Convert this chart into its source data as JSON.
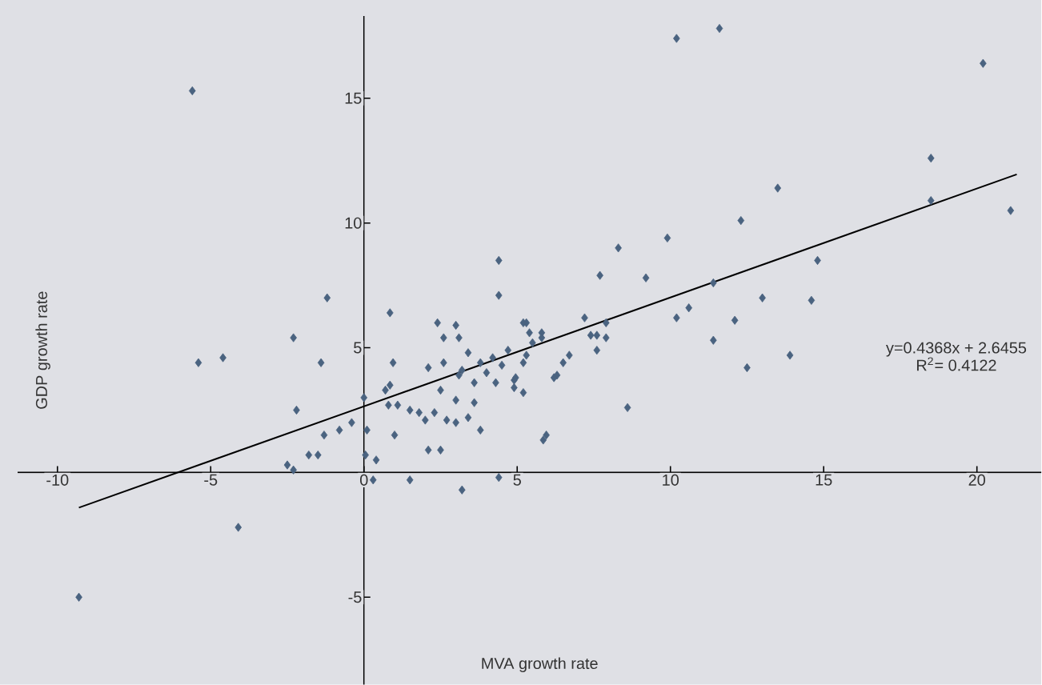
{
  "chart_data": {
    "type": "scatter",
    "xlabel": "MVA growth rate",
    "ylabel": "GDP growth rate",
    "xlim": [
      -11.3,
      22.1
    ],
    "ylim": [
      -8.5,
      18.3
    ],
    "xticks": [
      -10,
      -5,
      0,
      5,
      10,
      15,
      20
    ],
    "yticks": [
      -5,
      5,
      10,
      15
    ],
    "grid": false,
    "annotations": [
      "y=0.4368x + 2.6455",
      "R$^{2}$= 0.4122"
    ],
    "series": [
      {
        "color": "#4a6380",
        "marker": "diamond",
        "x": [
          -5.6,
          11.6,
          10.2,
          20.2,
          18.5,
          13.5,
          12.3,
          9.9,
          8.3,
          7.7,
          9.2,
          11.4,
          14.8,
          13.0,
          21.1,
          18.5,
          14.6,
          10.2,
          10.6,
          12.1,
          11.4,
          13.9,
          12.5,
          8.6,
          5.85,
          5.95,
          7.2,
          7.9,
          7.4,
          7.6,
          7.6,
          7.9,
          6.7,
          6.5,
          6.3,
          6.2,
          5.3,
          5.4,
          5.8,
          5.8,
          5.5,
          5.3,
          5.2,
          5.2,
          4.9,
          -9.3,
          -4.1,
          -5.4,
          -4.6,
          -2.3,
          -1.4,
          -1.2,
          -2.2,
          -2.5,
          -2.3,
          -1.8,
          -1.5,
          -1.3,
          -0.8,
          -0.4,
          0.0,
          0.1,
          0.05,
          0.4,
          0.3,
          1.5,
          3.2,
          4.4,
          1.0,
          2.1,
          2.5,
          3.8,
          0.85,
          2.4,
          3.0,
          2.6,
          3.1,
          4.4,
          4.4,
          5.2,
          0.95,
          0.7,
          0.85,
          0.8,
          1.1,
          1.5,
          1.8,
          2.0,
          2.1,
          2.5,
          2.3,
          2.7,
          3.0,
          3.0,
          2.6,
          3.2,
          3.4,
          3.6,
          3.8,
          4.0,
          4.2,
          4.5,
          4.3,
          4.7,
          4.9,
          4.95,
          3.4,
          3.1,
          3.6
        ],
        "values": [
          15.3,
          17.8,
          17.4,
          16.4,
          12.6,
          11.4,
          10.1,
          9.4,
          9.0,
          7.9,
          7.8,
          7.6,
          8.5,
          7.0,
          10.5,
          10.9,
          6.9,
          6.2,
          6.6,
          6.1,
          5.3,
          4.7,
          4.2,
          2.6,
          1.3,
          1.5,
          6.2,
          6.0,
          5.5,
          5.5,
          4.9,
          5.4,
          4.7,
          4.4,
          3.9,
          3.8,
          6.0,
          5.6,
          5.6,
          5.4,
          5.2,
          4.7,
          4.4,
          3.2,
          3.7,
          -5.0,
          -2.2,
          4.4,
          4.6,
          5.4,
          4.4,
          7.0,
          2.5,
          0.3,
          0.1,
          0.7,
          0.7,
          1.5,
          1.7,
          2.0,
          3.0,
          1.7,
          0.7,
          0.5,
          -0.3,
          -0.3,
          -0.7,
          -0.2,
          1.5,
          0.9,
          0.9,
          1.7,
          6.4,
          6.0,
          5.9,
          5.4,
          5.4,
          8.5,
          7.1,
          6.0,
          4.4,
          3.3,
          3.5,
          2.7,
          2.7,
          2.5,
          2.4,
          2.1,
          4.2,
          3.3,
          2.4,
          2.1,
          2.0,
          2.9,
          4.4,
          4.1,
          4.8,
          3.6,
          4.4,
          4.0,
          4.6,
          4.3,
          3.6,
          4.9,
          3.4,
          3.8,
          2.2,
          3.9,
          2.8
        ]
      },
      {
        "type": "line",
        "color": "#000000",
        "x": [
          -9.3,
          21.3
        ],
        "values": [
          -1.41,
          11.95
        ]
      }
    ]
  }
}
